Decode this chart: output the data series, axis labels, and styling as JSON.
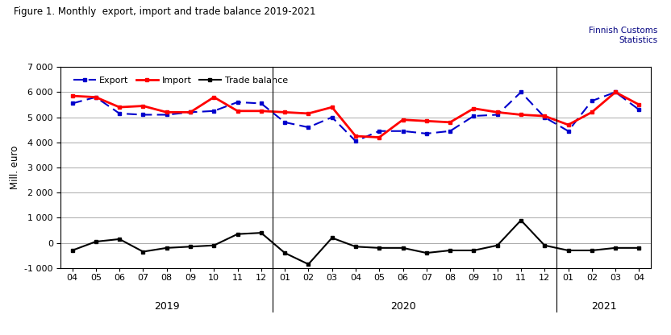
{
  "title": "Figure 1. Monthly  export, import and trade balance 2019-2021",
  "watermark": "Finnish Customs\nStatistics",
  "ylabel": "Mill. euro",
  "ylim": [
    -1000,
    7000
  ],
  "yticks": [
    -1000,
    0,
    1000,
    2000,
    3000,
    4000,
    5000,
    6000,
    7000
  ],
  "x_labels": [
    "04",
    "05",
    "06",
    "07",
    "08",
    "09",
    "10",
    "11",
    "12",
    "01",
    "02",
    "03",
    "04",
    "05",
    "06",
    "07",
    "08",
    "09",
    "10",
    "11",
    "12",
    "01",
    "02",
    "03",
    "04"
  ],
  "year_labels": [
    [
      "2019",
      4
    ],
    [
      "2020",
      14
    ],
    [
      "2021",
      22.5
    ]
  ],
  "year_dividers": [
    9,
    21
  ],
  "export": [
    5550,
    5800,
    5150,
    5100,
    5100,
    5200,
    5250,
    5600,
    5550,
    4800,
    4600,
    5000,
    4050,
    4450,
    4450,
    4350,
    4450,
    5050,
    5100,
    6000,
    5000,
    4450,
    5650,
    6000,
    5300
  ],
  "import": [
    5850,
    5800,
    5400,
    5450,
    5200,
    5200,
    5800,
    5250,
    5250,
    5200,
    5150,
    5400,
    4250,
    4200,
    4900,
    4850,
    4800,
    5350,
    5200,
    5100,
    5050,
    4700,
    5200,
    6000,
    5500
  ],
  "trade_balance": [
    -300,
    50,
    150,
    -350,
    -200,
    -150,
    -100,
    350,
    400,
    -400,
    -850,
    200,
    -150,
    -200,
    -200,
    -400,
    -300,
    -300,
    -100,
    900,
    -100,
    -300,
    -300,
    -200,
    -200
  ],
  "export_color": "#0000CC",
  "import_color": "#FF0000",
  "balance_color": "#000000",
  "title_color": "#000000",
  "watermark_color": "#000080",
  "background_color": "#FFFFFF",
  "grid_color": "#888888"
}
